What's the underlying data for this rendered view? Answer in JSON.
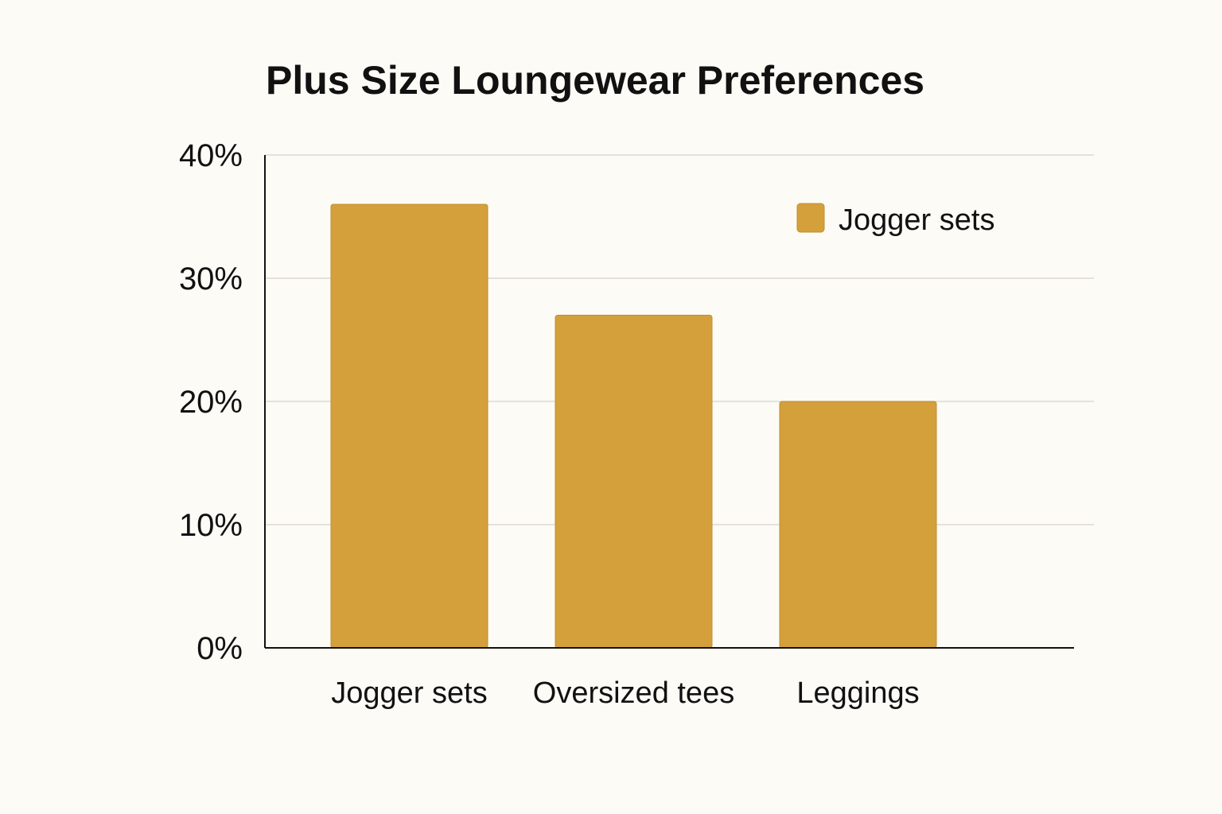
{
  "chart_data": {
    "type": "bar",
    "title": "Plus Size Loungewear Preferences",
    "categories": [
      "Jogger sets",
      "Oversized tees",
      "Leggings"
    ],
    "values": [
      36,
      27,
      20
    ],
    "unit": "%",
    "xlabel": "",
    "ylabel": "",
    "ylim": [
      0,
      40
    ],
    "yticks": [
      0,
      10,
      20,
      30,
      40
    ],
    "ytick_labels": [
      "0%",
      "10%",
      "20%",
      "30%",
      "40%"
    ],
    "grid": true,
    "legend": {
      "entries": [
        "Jogger sets"
      ],
      "placement": "top-right"
    },
    "colors": {
      "bar": "#d4a03c",
      "bar_edge": "#c08f30",
      "grid": "#dcdad2",
      "axis": "#111111",
      "background": "#fcfbf6"
    }
  }
}
